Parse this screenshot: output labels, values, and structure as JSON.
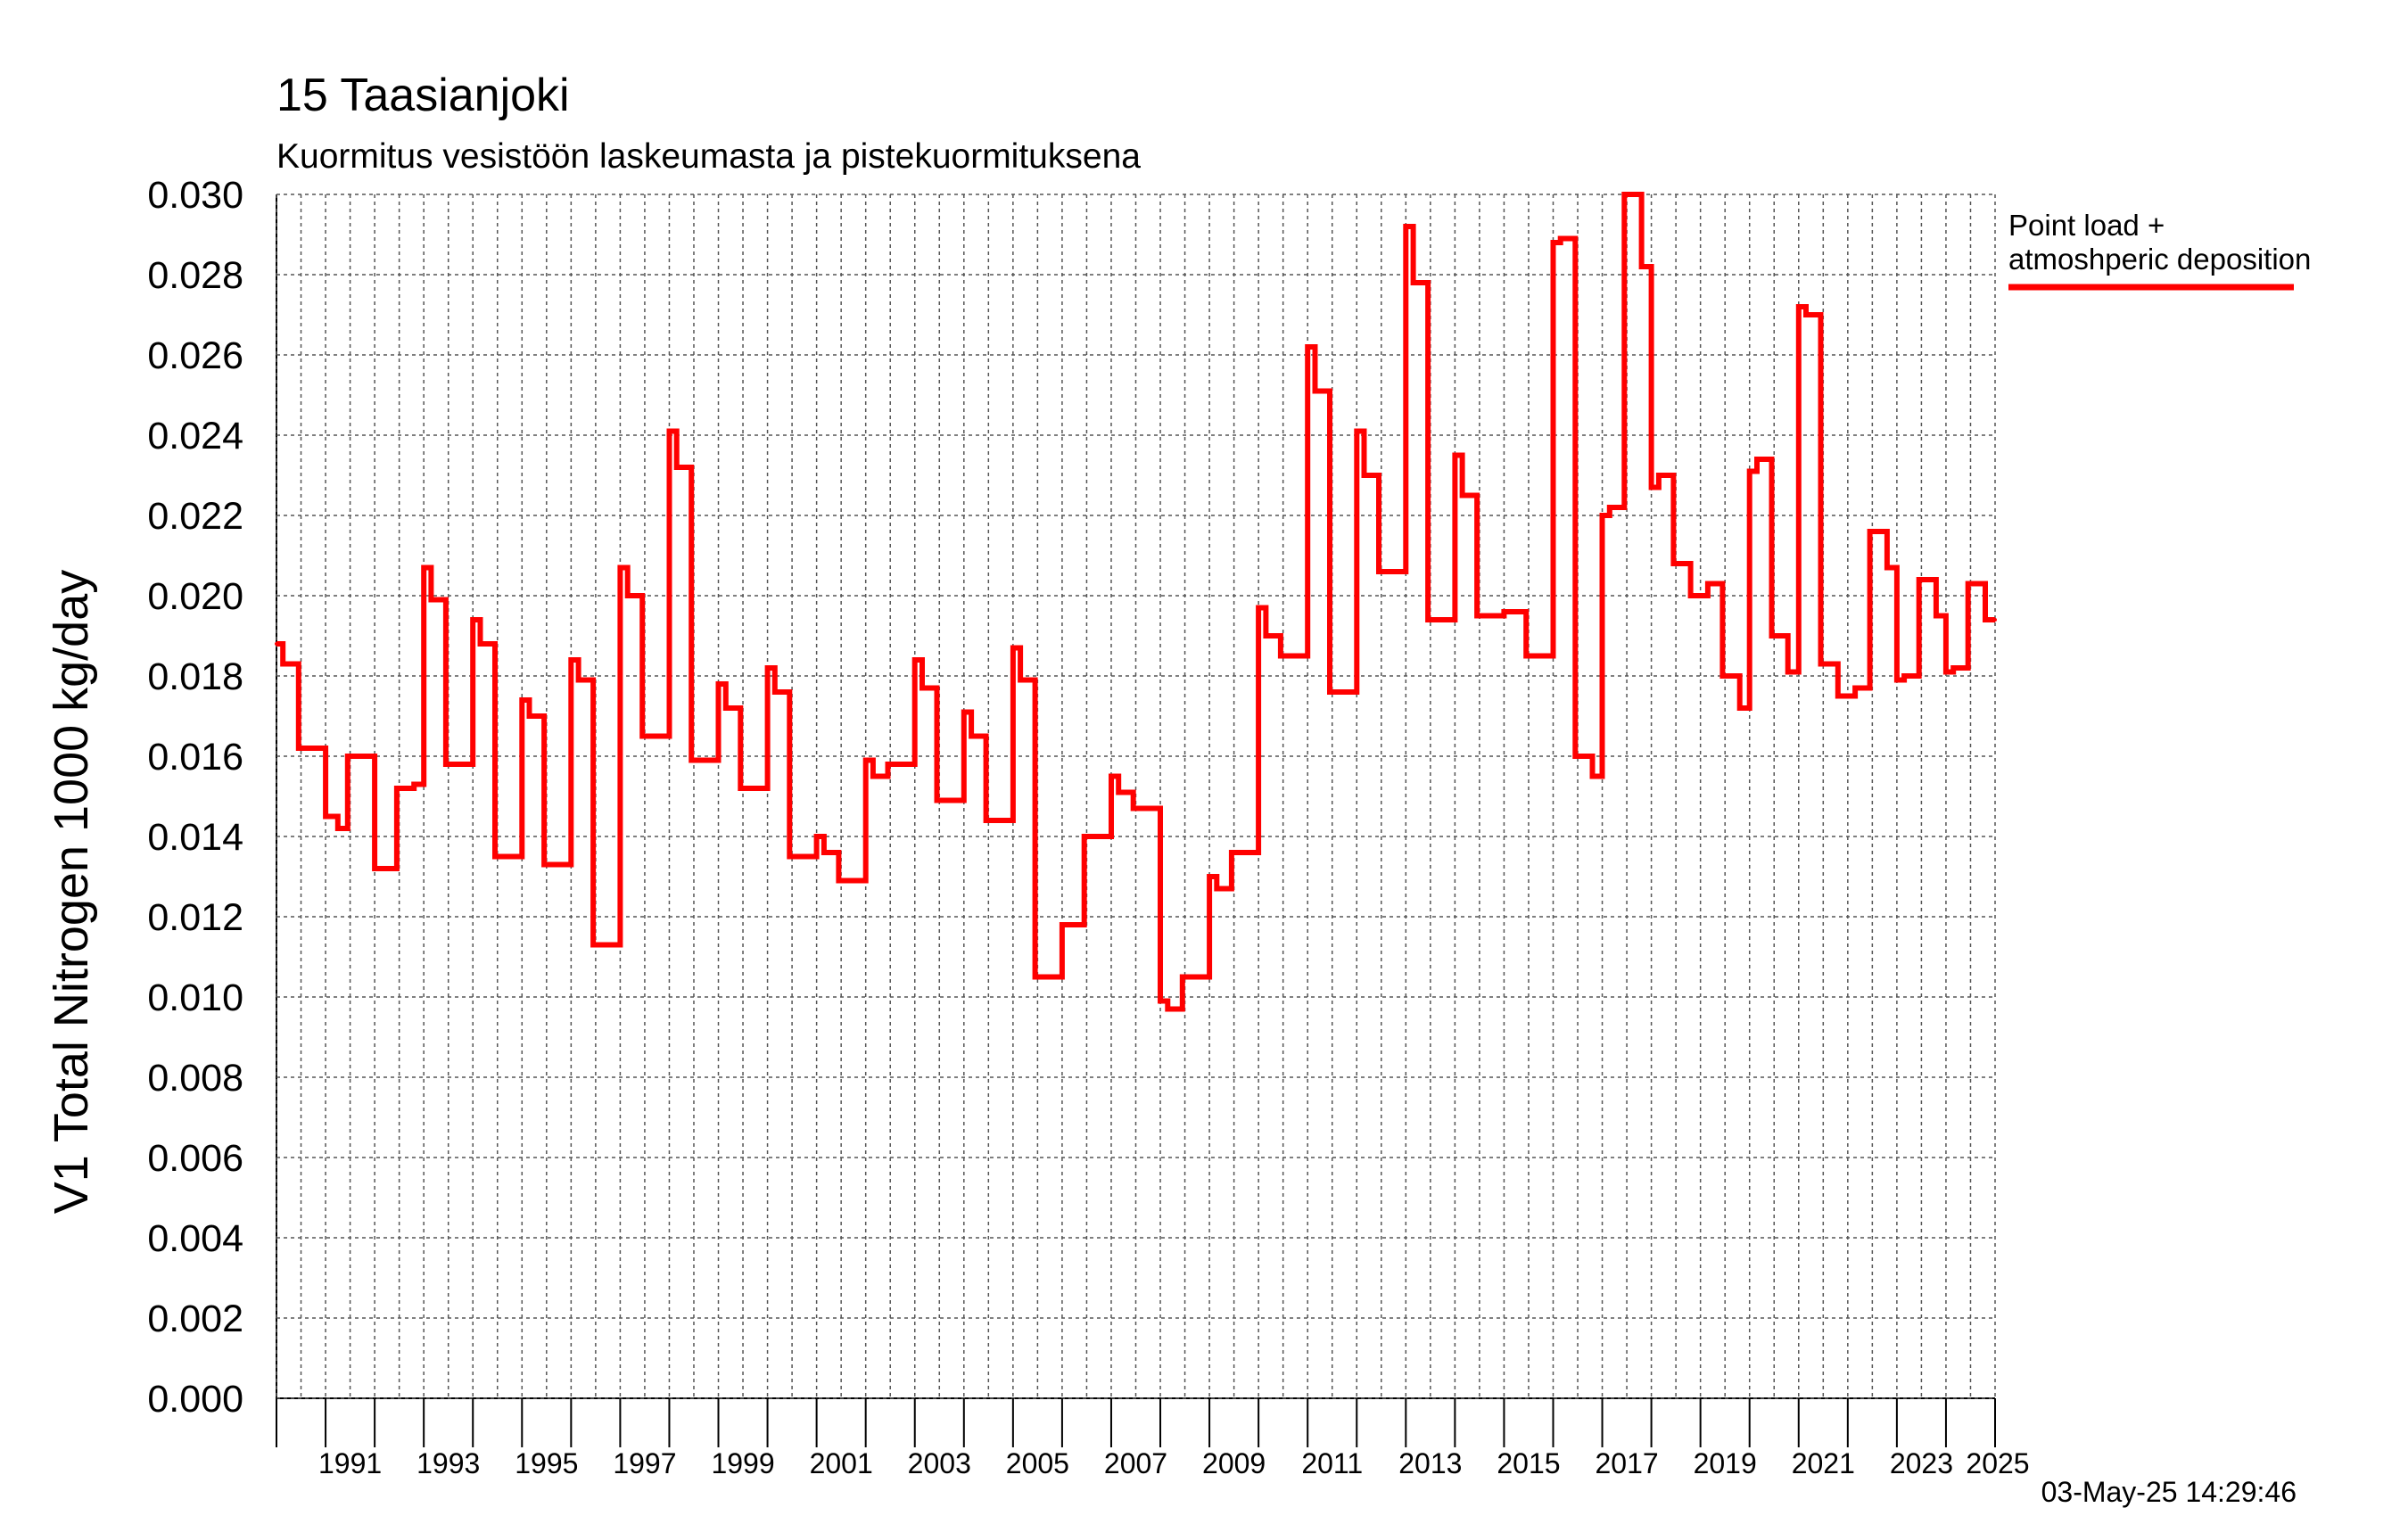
{
  "chart_data": {
    "type": "line",
    "title": "15 Taasianjoki",
    "subtitle": "Kuormitus vesistöön laskeumasta ja pistekuormituksena",
    "ylabel": "V1 Total Nitrogen 1000 kg/day",
    "xlabel": "",
    "ylim": [
      0.0,
      0.03
    ],
    "xlim": [
      1990.0,
      2025.0
    ],
    "grid": true,
    "legend_position": "top-right outside",
    "y_ticks": [
      "0.000",
      "0.002",
      "0.004",
      "0.006",
      "0.008",
      "0.010",
      "0.012",
      "0.014",
      "0.016",
      "0.018",
      "0.020",
      "0.022",
      "0.024",
      "0.026",
      "0.028",
      "0.030"
    ],
    "x_ticks": [
      "1991",
      "1993",
      "1995",
      "1997",
      "1999",
      "2001",
      "2003",
      "2005",
      "2007",
      "2009",
      "2011",
      "2013",
      "2015",
      "2017",
      "2019",
      "2021",
      "2023",
      "2025"
    ],
    "timestamp": "03-May-25 14:29:46",
    "series": [
      {
        "name": "Point load + atmoshperic deposition",
        "color": "#ff0000",
        "x": [
          1990.0,
          1990.13,
          1990.3,
          1990.45,
          1990.83,
          1991.0,
          1991.25,
          1991.45,
          1991.8,
          1992.0,
          1992.1,
          1992.45,
          1992.8,
          1993.0,
          1993.15,
          1993.45,
          1993.78,
          1994.0,
          1994.15,
          1994.45,
          1994.78,
          1995.0,
          1995.15,
          1995.45,
          1995.78,
          1996.0,
          1996.15,
          1996.45,
          1996.8,
          1997.0,
          1997.15,
          1997.45,
          1997.78,
          1998.0,
          1998.15,
          1998.45,
          1998.8,
          1999.0,
          1999.15,
          1999.45,
          1999.8,
          2000.0,
          2000.15,
          2000.45,
          2000.8,
          2001.0,
          2001.15,
          2001.45,
          2001.8,
          2002.0,
          2002.15,
          2002.45,
          2002.8,
          2003.0,
          2003.15,
          2003.45,
          2003.78,
          2004.0,
          2004.15,
          2004.45,
          2004.78,
          2005.0,
          2005.15,
          2005.45,
          2005.8,
          2006.0,
          2006.15,
          2006.45,
          2006.8,
          2007.0,
          2007.15,
          2007.45,
          2007.8,
          2008.0,
          2008.15,
          2008.45,
          2008.8,
          2009.0,
          2009.15,
          2009.45,
          2009.78,
          2010.0,
          2010.15,
          2010.45,
          2010.8,
          2011.0,
          2011.15,
          2011.45,
          2011.8,
          2012.0,
          2012.15,
          2012.45,
          2012.78,
          2013.0,
          2013.15,
          2013.45,
          2013.8,
          2014.0,
          2014.15,
          2014.45,
          2014.78,
          2015.0,
          2015.15,
          2015.45,
          2015.78,
          2016.0,
          2016.15,
          2016.45,
          2016.8,
          2017.0,
          2017.15,
          2017.45,
          2017.8,
          2018.0,
          2018.15,
          2018.45,
          2018.8,
          2019.0,
          2019.15,
          2019.45,
          2019.8,
          2020.0,
          2020.15,
          2020.45,
          2020.78,
          2021.0,
          2021.15,
          2021.45,
          2021.8,
          2022.0,
          2022.15,
          2022.45,
          2022.8,
          2023.0,
          2023.15,
          2023.45,
          2023.8,
          2024.0,
          2024.15,
          2024.45,
          2024.8,
          2025.0
        ],
        "values": [
          0.0188,
          0.0183,
          0.0183,
          0.0162,
          0.0162,
          0.0145,
          0.0142,
          0.016,
          0.016,
          0.0132,
          0.0132,
          0.0152,
          0.0153,
          0.0207,
          0.0199,
          0.0158,
          0.0158,
          0.0194,
          0.0188,
          0.0135,
          0.0135,
          0.0174,
          0.017,
          0.0133,
          0.0133,
          0.0184,
          0.0179,
          0.0113,
          0.0113,
          0.0207,
          0.02,
          0.0165,
          0.0165,
          0.0241,
          0.0232,
          0.0159,
          0.0159,
          0.0178,
          0.0172,
          0.0152,
          0.0152,
          0.0182,
          0.0176,
          0.0135,
          0.0135,
          0.014,
          0.0136,
          0.0129,
          0.0129,
          0.0159,
          0.0155,
          0.0158,
          0.0158,
          0.0184,
          0.0177,
          0.0149,
          0.0149,
          0.0171,
          0.0165,
          0.0144,
          0.0144,
          0.0187,
          0.0179,
          0.0105,
          0.0105,
          0.0118,
          0.0118,
          0.014,
          0.014,
          0.0155,
          0.0151,
          0.0147,
          0.0147,
          0.0099,
          0.0097,
          0.0105,
          0.0105,
          0.013,
          0.0127,
          0.0136,
          0.0136,
          0.0197,
          0.019,
          0.0185,
          0.0185,
          0.0262,
          0.0251,
          0.0176,
          0.0176,
          0.0241,
          0.023,
          0.0206,
          0.0206,
          0.0292,
          0.0278,
          0.0194,
          0.0194,
          0.0235,
          0.0225,
          0.0195,
          0.0195,
          0.0196,
          0.0196,
          0.0185,
          0.0185,
          0.0288,
          0.0289,
          0.016,
          0.0155,
          0.022,
          0.0222,
          0.03,
          0.0282,
          0.0227,
          0.023,
          0.0208,
          0.02,
          0.02,
          0.0203,
          0.018,
          0.0172,
          0.0231,
          0.0234,
          0.019,
          0.0181,
          0.0272,
          0.027,
          0.0183,
          0.0175,
          0.0175,
          0.0177,
          0.0216,
          0.0207,
          0.0179,
          0.018,
          0.0204,
          0.0195,
          0.0181,
          0.0182,
          0.0203,
          0.0194,
          0.0194
        ]
      }
    ]
  }
}
